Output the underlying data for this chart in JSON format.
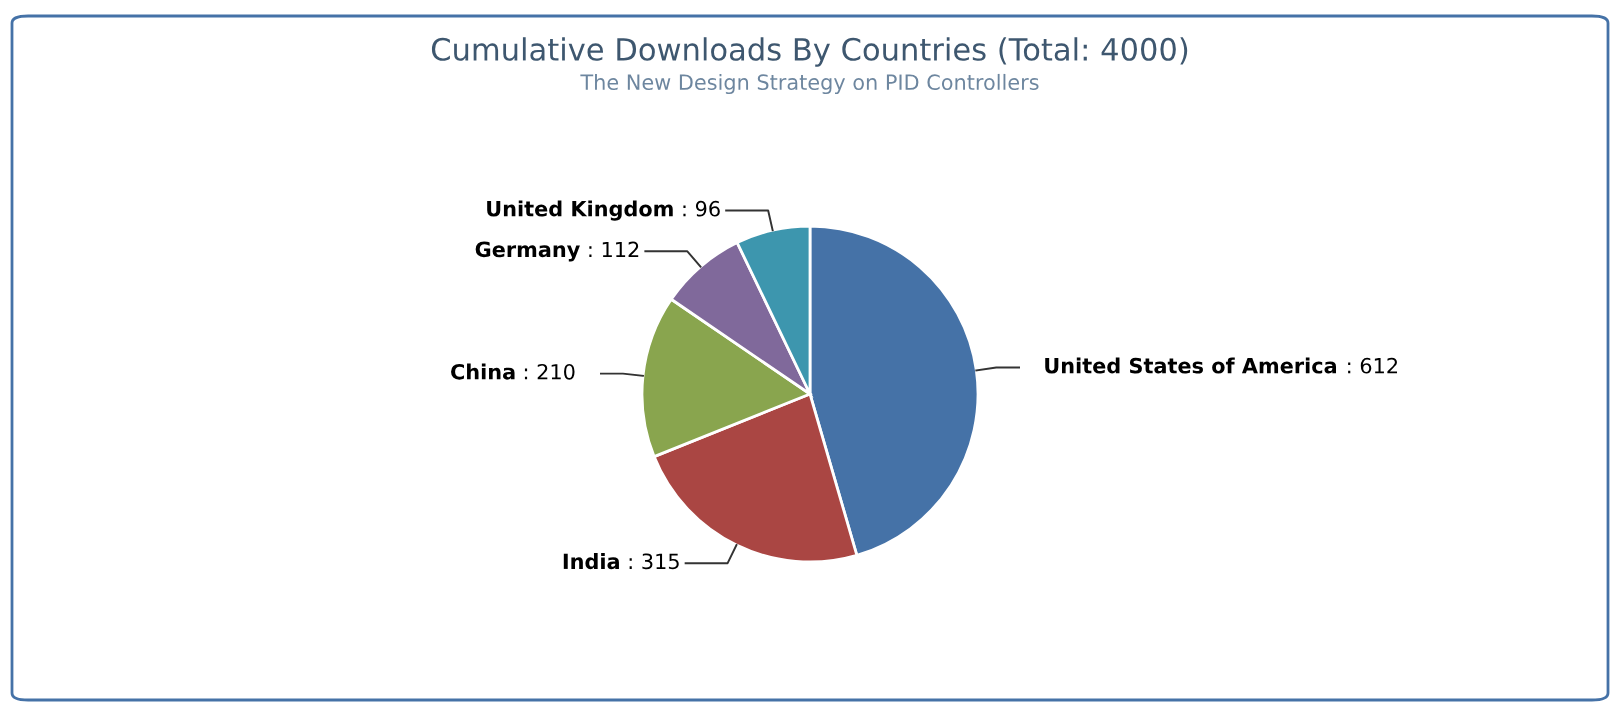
{
  "chart_data": {
    "type": "pie",
    "title": "Cumulative Downloads By Countries (Total: 4000)",
    "subtitle": "The New Design Strategy on PID Controllers",
    "categories": [
      "United States of America",
      "India",
      "China",
      "Germany",
      "United Kingdom"
    ],
    "values": [
      612,
      315,
      210,
      112,
      96
    ],
    "colors": [
      "#4572a7",
      "#aa4643",
      "#89a54e",
      "#80699b",
      "#3d96ae"
    ],
    "value_labels": [
      ": 612",
      ": 315",
      ": 210",
      ": 112",
      ": 96"
    ],
    "legend": false
  }
}
